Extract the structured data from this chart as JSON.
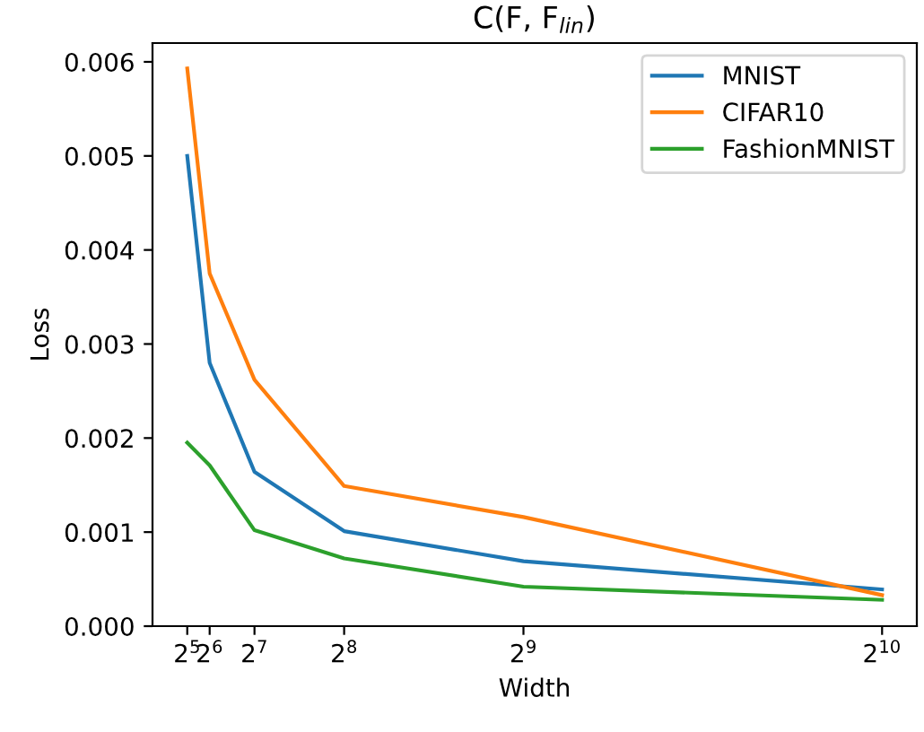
{
  "chart_data": {
    "type": "line",
    "title": "C(F, F$_{lin}$)",
    "xlabel": "Width",
    "ylabel": "Loss",
    "x": [
      32,
      64,
      128,
      256,
      512,
      1024
    ],
    "series": [
      {
        "name": "MNIST",
        "color": "#1f77b4",
        "values": [
          0.005,
          0.0028,
          0.00164,
          0.00101,
          0.00069,
          0.00039
        ]
      },
      {
        "name": "CIFAR10",
        "color": "#ff7f0e",
        "values": [
          0.00593,
          0.00375,
          0.00262,
          0.00149,
          0.00116,
          0.00033
        ]
      },
      {
        "name": "FashionMNIST",
        "color": "#2ca02c",
        "values": [
          0.00195,
          0.00171,
          0.00102,
          0.00072,
          0.00042,
          0.00028
        ]
      }
    ],
    "xlim": [
      -17.6,
      1073.6
    ],
    "ylim": [
      0,
      0.0062
    ],
    "xticks": [
      {
        "value": 32,
        "label": "2$^{5}$"
      },
      {
        "value": 64,
        "label": "2$^{6}$"
      },
      {
        "value": 128,
        "label": "2$^{7}$"
      },
      {
        "value": 256,
        "label": "2$^{8}$"
      },
      {
        "value": 512,
        "label": "2$^{9}$"
      },
      {
        "value": 1024,
        "label": "2$^{10}$"
      }
    ],
    "yticks": [
      {
        "value": 0,
        "label": "0.000"
      },
      {
        "value": 0.001,
        "label": "0.001"
      },
      {
        "value": 0.002,
        "label": "0.002"
      },
      {
        "value": 0.003,
        "label": "0.003"
      },
      {
        "value": 0.004,
        "label": "0.004"
      },
      {
        "value": 0.005,
        "label": "0.005"
      },
      {
        "value": 0.006,
        "label": "0.006"
      }
    ],
    "legend": "top right",
    "grid": false
  }
}
